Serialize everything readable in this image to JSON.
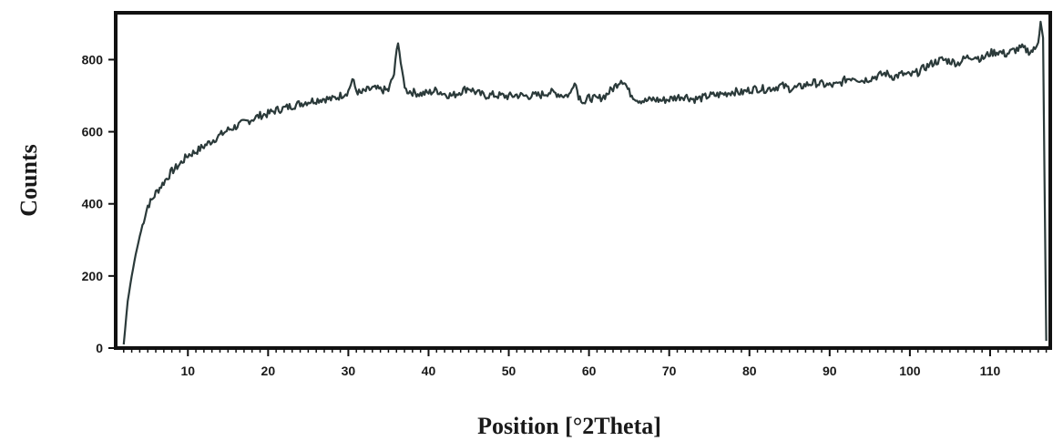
{
  "chart_data": {
    "type": "line",
    "xlabel": "Position [°2Theta]",
    "ylabel": "Counts",
    "xlim": [
      1,
      117.5
    ],
    "ylim": [
      0,
      930
    ],
    "x_ticks": [
      10,
      20,
      30,
      40,
      50,
      60,
      70,
      80,
      90,
      100,
      110
    ],
    "y_ticks": [
      0,
      200,
      400,
      600,
      800
    ],
    "grid": false,
    "legend": "none",
    "line_color": "#2b3a3a",
    "series": [
      {
        "x": [
          2,
          2.5,
          3,
          3.5,
          4,
          4.5,
          5,
          5.5,
          6,
          7,
          8,
          9,
          10,
          11,
          12,
          13,
          14,
          15,
          16,
          17,
          18,
          19,
          20,
          21,
          22,
          23,
          24,
          25,
          26,
          27,
          28,
          29,
          30,
          30.5,
          31,
          31.5,
          32,
          33,
          34,
          35,
          35.7,
          36.2,
          36.7,
          37.2,
          38,
          39,
          40,
          41,
          42,
          43,
          44,
          45,
          46,
          47,
          48,
          49,
          50,
          51,
          52,
          53,
          54,
          55,
          56,
          57,
          57.7,
          58.2,
          58.7,
          59.5,
          60,
          61,
          62,
          63,
          64,
          64.4,
          65,
          66,
          67,
          68,
          69,
          70,
          71,
          72,
          73,
          74,
          75,
          76,
          77,
          78,
          79,
          80,
          81,
          82,
          83,
          84,
          85,
          86,
          87,
          88,
          89,
          90,
          91,
          92,
          93,
          94,
          95,
          96,
          97,
          98,
          99,
          100,
          101,
          102,
          103,
          104,
          105,
          106,
          107,
          108,
          109,
          110,
          111,
          112,
          113,
          114,
          115,
          115.6,
          116,
          116.3,
          116.6,
          117
        ],
        "y": [
          10,
          130,
          200,
          260,
          310,
          355,
          395,
          410,
          430,
          460,
          490,
          510,
          535,
          545,
          560,
          575,
          590,
          605,
          615,
          625,
          635,
          645,
          650,
          660,
          665,
          672,
          678,
          684,
          688,
          692,
          690,
          700,
          712,
          745,
          715,
          705,
          712,
          720,
          716,
          715,
          760,
          855,
          760,
          715,
          710,
          705,
          708,
          715,
          705,
          700,
          712,
          722,
          708,
          700,
          702,
          700,
          698,
          702,
          699,
          700,
          702,
          710,
          706,
          700,
          705,
          745,
          700,
          680,
          695,
          690,
          700,
          720,
          745,
          740,
          710,
          690,
          685,
          690,
          687,
          690,
          696,
          699,
          690,
          693,
          700,
          702,
          706,
          712,
          708,
          716,
          720,
          718,
          722,
          728,
          720,
          722,
          730,
          736,
          732,
          728,
          730,
          745,
          752,
          742,
          748,
          755,
          762,
          752,
          760,
          756,
          765,
          780,
          792,
          800,
          796,
          790,
          805,
          810,
          802,
          818,
          822,
          815,
          826,
          832,
          822,
          828,
          855,
          905,
          860,
          20
        ]
      }
    ]
  }
}
